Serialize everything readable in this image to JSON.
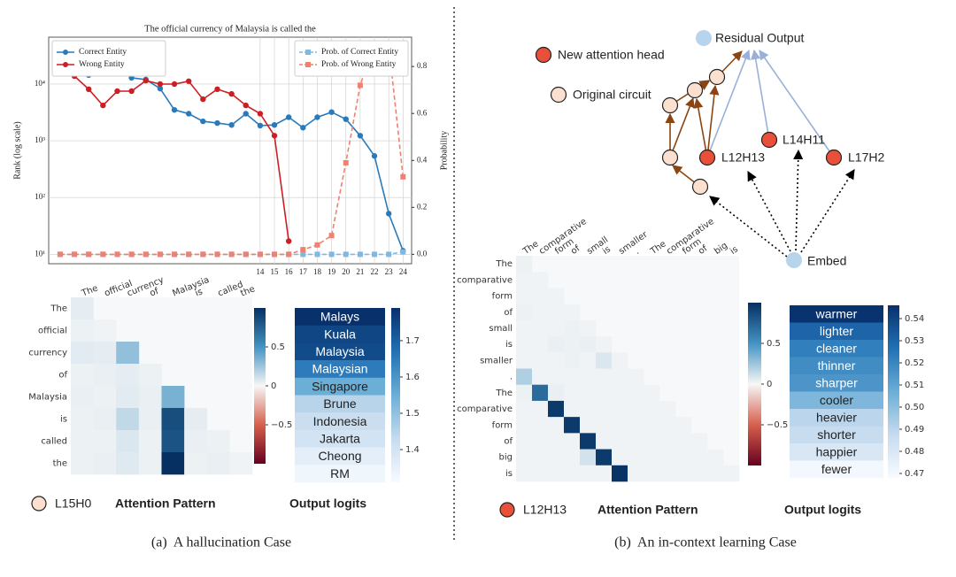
{
  "chart_data": [
    {
      "type": "line",
      "title": "The official currency of Malaysia is called the",
      "ylabel": "Rank (log scale)",
      "y2label": "Probability",
      "x": [
        0,
        1,
        2,
        3,
        4,
        5,
        6,
        7,
        8,
        9,
        10,
        11,
        12,
        13,
        14,
        15,
        16,
        17,
        18,
        19,
        20,
        21,
        22,
        23,
        24
      ],
      "xlim": [
        -0.8,
        24.6
      ],
      "xticks": [
        14,
        15,
        16,
        17,
        18,
        19,
        20,
        21,
        22,
        23,
        24
      ],
      "ylog": true,
      "ylim": [
        6.8,
        67000
      ],
      "yticks": [
        {
          "value": 10,
          "label": "10¹"
        },
        {
          "value": 100,
          "label": "10²"
        },
        {
          "value": 1000,
          "label": "10³"
        },
        {
          "value": 10000,
          "label": "10⁴"
        }
      ],
      "y2lim": [
        -0.04,
        0.925
      ],
      "y2ticks": [
        {
          "value": 0,
          "label": "0.0"
        },
        0.2,
        0.4,
        0.6,
        0.8
      ],
      "grid": true,
      "legend": "upper left",
      "legend2": "upper right",
      "series": [
        {
          "name": "Correct Entity",
          "color": "#2a7ab9",
          "marker": "circle",
          "dash": false,
          "values": [
            20400,
            18600,
            14400,
            16000,
            21900,
            12900,
            12000,
            8300,
            3500,
            3000,
            2200,
            2050,
            1900,
            3000,
            1850,
            1900,
            2600,
            1700,
            2600,
            3200,
            2400,
            1230,
            540,
            52,
            11.5
          ]
        },
        {
          "name": "Wrong Entity",
          "color": "#cc1f24",
          "marker": "circle",
          "dash": false,
          "values": [
            35000,
            13800,
            8100,
            4200,
            7500,
            7500,
            11500,
            10000,
            10000,
            11200,
            5400,
            8100,
            6700,
            4200,
            3000,
            1230,
            17,
            null,
            null,
            null,
            null,
            null,
            null,
            null,
            null
          ]
        },
        {
          "name": "Prob. of Correct Entity",
          "color": "#7fb8e0",
          "marker": "square",
          "dash": true,
          "axis": "y2",
          "values": [
            0,
            0,
            0,
            0,
            0,
            0,
            0,
            0,
            0,
            0,
            0,
            0,
            0,
            0,
            0,
            0,
            0,
            0,
            0,
            0,
            0,
            0,
            0,
            0,
            0.01
          ]
        },
        {
          "name": "Prob. of Wrong Entity",
          "color": "#f08070",
          "marker": "square",
          "dash": true,
          "axis": "y2",
          "values": [
            0,
            0,
            0,
            0,
            0,
            0,
            0,
            0,
            0,
            0,
            0,
            0,
            0,
            0,
            0,
            0,
            0,
            0.02,
            0.04,
            0.08,
            0.39,
            0.72,
            0.9,
            0.89,
            0.33
          ]
        }
      ]
    },
    {
      "type": "heatmap",
      "title": "Attention Pattern",
      "head": "L15H0",
      "head_color": "#fbe0d0",
      "x_categories": [
        "The",
        "official",
        "currency",
        "of",
        "Malaysia",
        "is",
        "called",
        "the"
      ],
      "y_categories": [
        "The",
        "official",
        "currency",
        "of",
        "Malaysia",
        "is",
        "called",
        "the"
      ],
      "values": [
        [
          0.05,
          null,
          null,
          null,
          null,
          null,
          null,
          null
        ],
        [
          0.03,
          0.02,
          null,
          null,
          null,
          null,
          null,
          null
        ],
        [
          0.06,
          0.05,
          0.28,
          null,
          null,
          null,
          null,
          null
        ],
        [
          0.03,
          0.04,
          0.05,
          0.03,
          null,
          null,
          null,
          null
        ],
        [
          0.04,
          0.03,
          0.06,
          0.04,
          0.35,
          null,
          null,
          null
        ],
        [
          0.03,
          0.04,
          0.15,
          0.04,
          0.85,
          0.05,
          null,
          null
        ],
        [
          0.03,
          0.03,
          0.08,
          0.03,
          0.82,
          0.04,
          0.03,
          null
        ],
        [
          0.03,
          0.04,
          0.07,
          0.03,
          1.0,
          0.03,
          0.04,
          0.02
        ]
      ],
      "colors": [
        "#67001f",
        "#d6604d",
        "#f7f7f7",
        "#4393c3",
        "#053061"
      ],
      "clim": [
        -1,
        1
      ],
      "cticks": [
        0.5,
        0,
        {
          "value": -0.5,
          "label": "−0.5"
        }
      ]
    },
    {
      "type": "logits",
      "title": "Output logits",
      "categories": [
        "Malays",
        "Kuala",
        "Malaysia",
        "Malaysian",
        "Singapore",
        "Brune",
        "Indonesia",
        "Jakarta",
        "Cheong",
        "RM"
      ],
      "values": [
        1.79,
        1.75,
        1.74,
        1.65,
        1.55,
        1.45,
        1.42,
        1.4,
        1.36,
        1.33
      ],
      "colors": [
        "#f7fbff",
        "#c6dbef",
        "#6baed6",
        "#2171b5",
        "#08306b"
      ],
      "clim": [
        1.31,
        1.79
      ],
      "cticks": [
        1.4,
        1.5,
        1.6,
        1.7
      ]
    },
    {
      "type": "heatmap",
      "title": "Attention Pattern",
      "head": "L12H13",
      "head_color": "#e8503a",
      "x_categories": [
        "The",
        "comparative",
        "form",
        "of",
        "small",
        "is",
        "smaller",
        ".",
        "The",
        "comparative",
        "form",
        "of",
        "big",
        "is"
      ],
      "y_categories": [
        "The",
        "comparative",
        "form",
        "of",
        "small",
        "is",
        "smaller",
        ".",
        "The",
        "comparative",
        "form",
        "of",
        "big",
        "is"
      ],
      "values": [
        [
          0.03,
          null,
          null,
          null,
          null,
          null,
          null,
          null,
          null,
          null,
          null,
          null,
          null,
          null
        ],
        [
          0.02,
          0.02,
          null,
          null,
          null,
          null,
          null,
          null,
          null,
          null,
          null,
          null,
          null,
          null
        ],
        [
          0.02,
          0.02,
          0.02,
          null,
          null,
          null,
          null,
          null,
          null,
          null,
          null,
          null,
          null,
          null
        ],
        [
          0.03,
          0.02,
          0.02,
          0.02,
          null,
          null,
          null,
          null,
          null,
          null,
          null,
          null,
          null,
          null
        ],
        [
          0.02,
          0.02,
          0.02,
          0.03,
          0.02,
          null,
          null,
          null,
          null,
          null,
          null,
          null,
          null,
          null
        ],
        [
          0.02,
          0.02,
          0.04,
          0.03,
          0.04,
          0.02,
          null,
          null,
          null,
          null,
          null,
          null,
          null,
          null
        ],
        [
          0.02,
          0.02,
          0.02,
          0.03,
          0.02,
          0.08,
          0.02,
          null,
          null,
          null,
          null,
          null,
          null,
          null
        ],
        [
          0.2,
          0.02,
          0.02,
          0.02,
          0.02,
          0.02,
          0.02,
          0.02,
          null,
          null,
          null,
          null,
          null,
          null
        ],
        [
          0.03,
          0.7,
          0.04,
          0.02,
          0.02,
          0.02,
          0.02,
          0.02,
          0.02,
          null,
          null,
          null,
          null,
          null
        ],
        [
          0.02,
          0.02,
          0.95,
          0.02,
          0.02,
          0.02,
          0.02,
          0.02,
          0.02,
          0.02,
          null,
          null,
          null,
          null
        ],
        [
          0.02,
          0.02,
          0.02,
          0.95,
          0.02,
          0.02,
          0.02,
          0.02,
          0.02,
          0.02,
          0.02,
          null,
          null,
          null
        ],
        [
          0.02,
          0.02,
          0.02,
          0.02,
          0.95,
          0.02,
          0.02,
          0.02,
          0.02,
          0.02,
          0.02,
          0.02,
          null,
          null
        ],
        [
          0.02,
          0.02,
          0.02,
          0.02,
          0.1,
          0.95,
          0.02,
          0.02,
          0.02,
          0.02,
          0.02,
          0.02,
          0.02,
          null
        ],
        [
          0.02,
          0.02,
          0.02,
          0.02,
          0.02,
          0.02,
          0.98,
          0.02,
          0.02,
          0.02,
          0.02,
          0.02,
          0.02,
          0.02
        ]
      ],
      "colors": [
        "#67001f",
        "#d6604d",
        "#f7f7f7",
        "#4393c3",
        "#053061"
      ],
      "clim": [
        -1,
        1
      ],
      "cticks": [
        0.5,
        0,
        {
          "value": -0.5,
          "label": "−0.5"
        }
      ]
    },
    {
      "type": "logits",
      "title": "Output logits",
      "categories": [
        "warmer",
        "lighter",
        "cleaner",
        "thinner",
        "sharper",
        "cooler",
        "heavier",
        "shorter",
        "happier",
        "fewer"
      ],
      "values": [
        0.545,
        0.53,
        0.522,
        0.518,
        0.515,
        0.503,
        0.49,
        0.487,
        0.48,
        0.47
      ],
      "colors": [
        "#f7fbff",
        "#c6dbef",
        "#6baed6",
        "#2171b5",
        "#08306b"
      ],
      "clim": [
        0.468,
        0.546
      ],
      "cticks": [
        0.47,
        0.48,
        0.49,
        {
          "value": 0.5,
          "label": "0.50"
        },
        0.51,
        0.52,
        0.53,
        0.54
      ]
    }
  ],
  "diagram": {
    "legend": [
      "New attention head",
      "Original circuit"
    ],
    "nodes": [
      "Residual Output",
      "L12H13",
      "L14H11",
      "L17H2",
      "Embed"
    ]
  },
  "captions": [
    "(a)  A hallucination Case",
    "(b)  An in-context learning Case"
  ]
}
